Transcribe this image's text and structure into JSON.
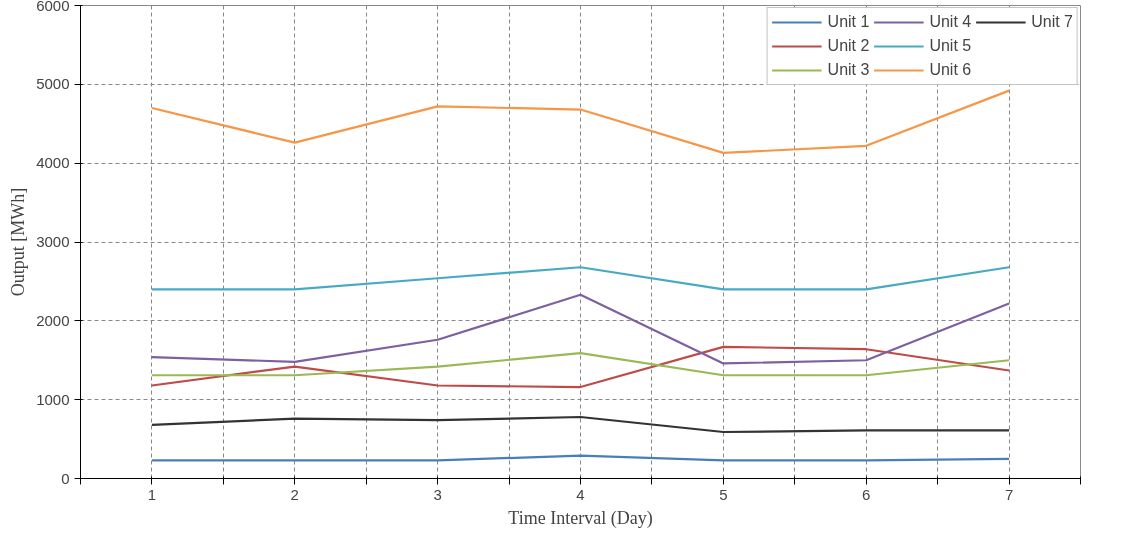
{
  "chart_data": {
    "type": "line",
    "xlabel": "Time Interval (Day)",
    "ylabel": "Output [MWh]",
    "x": [
      1,
      2,
      3,
      4,
      5,
      6,
      7
    ],
    "xlim": [
      0.5,
      7.5
    ],
    "xticks": [
      {
        "value": 0.5,
        "label": null
      },
      1,
      {
        "value": 1.5,
        "label": null
      },
      2,
      {
        "value": 2.5,
        "label": null
      },
      3,
      {
        "value": 3.5,
        "label": null
      },
      4,
      {
        "value": 4.5,
        "label": null
      },
      5,
      {
        "value": 5.5,
        "label": null
      },
      6,
      {
        "value": 6.5,
        "label": null
      },
      7,
      {
        "value": 7.5,
        "label": null
      }
    ],
    "ylim": [
      0,
      6000
    ],
    "yticks": [
      0,
      1000,
      2000,
      3000,
      4000,
      5000,
      6000
    ],
    "grid": true,
    "legend": "top right",
    "marker": "none",
    "line_style": "solid",
    "series": [
      {
        "name": "Unit 1",
        "color": "#4a7ebb",
        "values": [
          230,
          230,
          230,
          290,
          230,
          230,
          250
        ]
      },
      {
        "name": "Unit 2",
        "color": "#be4b48",
        "values": [
          1180,
          1420,
          1180,
          1160,
          1670,
          1640,
          1370
        ]
      },
      {
        "name": "Unit 3",
        "color": "#98b954",
        "values": [
          1310,
          1310,
          1420,
          1590,
          1310,
          1310,
          1500
        ]
      },
      {
        "name": "Unit 4",
        "color": "#7d60a0",
        "values": [
          1540,
          1480,
          1760,
          2330,
          1460,
          1500,
          2220
        ]
      },
      {
        "name": "Unit 5",
        "color": "#46aac5",
        "values": [
          2400,
          2400,
          2540,
          2680,
          2400,
          2400,
          2680
        ]
      },
      {
        "name": "Unit 6",
        "color": "#f79646",
        "values": [
          4700,
          4260,
          4720,
          4680,
          4130,
          4220,
          4920
        ]
      },
      {
        "name": "Unit 7",
        "color": "#333333",
        "values": [
          680,
          760,
          740,
          780,
          590,
          610,
          610
        ]
      }
    ]
  }
}
